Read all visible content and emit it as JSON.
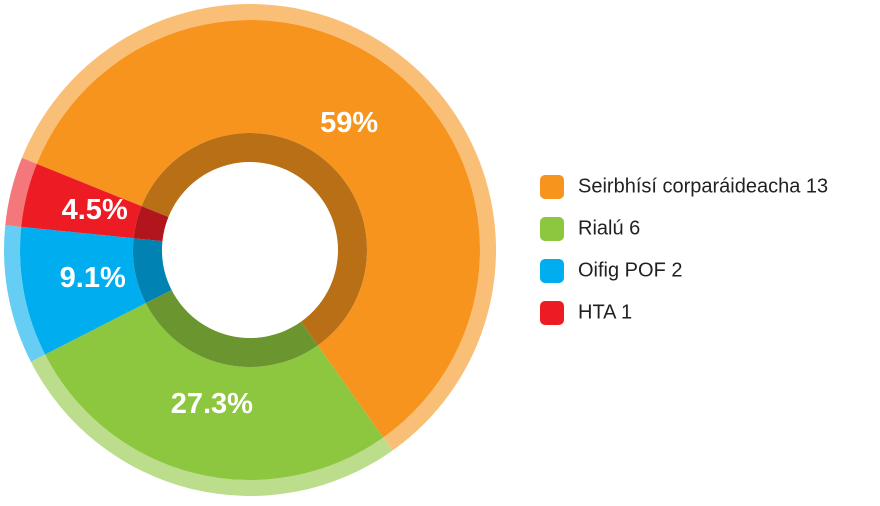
{
  "chart_data": {
    "type": "pie",
    "series": [
      {
        "name": "Seirbhísí corparáideacha 13",
        "color": "#f7941d"
      },
      {
        "name": "Rialú 6",
        "color": "#8dc63f"
      },
      {
        "name": "Oifig POF 2",
        "color": "#00aeef"
      },
      {
        "name": "HTA 1",
        "color": "#ed1c24"
      }
    ],
    "values": [
      59,
      27.3,
      9.1,
      4.5
    ],
    "value_labels": [
      "59%",
      "27.3%",
      "9.1%",
      "4.5%"
    ],
    "legend": "right"
  }
}
